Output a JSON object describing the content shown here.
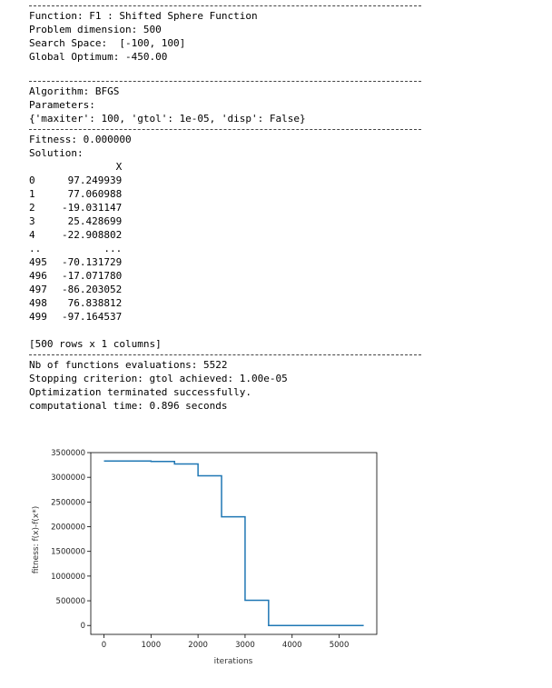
{
  "problem": {
    "function_line": "Function: F1 : Shifted Sphere Function",
    "dimension_line": "Problem dimension: 500",
    "search_space_line": "Search Space:  [-100, 100]",
    "optimum_line": "Global Optimum: -450.00"
  },
  "algorithm": {
    "algorithm_line": "Algorithm: BFGS",
    "parameters_label": "Parameters:",
    "parameters_value": "{'maxiter': 100, 'gtol': 1e-05, 'disp': False}"
  },
  "result": {
    "fitness_line": "Fitness: 0.000000",
    "solution_label": "Solution:",
    "column_header": "X",
    "rows": [
      {
        "index": "0",
        "value": "97.249939"
      },
      {
        "index": "1",
        "value": "77.060988"
      },
      {
        "index": "2",
        "value": "-19.031147"
      },
      {
        "index": "3",
        "value": "25.428699"
      },
      {
        "index": "4",
        "value": "-22.908802"
      },
      {
        "index": "..",
        "value": "..."
      },
      {
        "index": "495",
        "value": "-70.131729"
      },
      {
        "index": "496",
        "value": "-17.071780"
      },
      {
        "index": "497",
        "value": "-86.203052"
      },
      {
        "index": "498",
        "value": "76.838812"
      },
      {
        "index": "499",
        "value": "-97.164537"
      }
    ],
    "shape_line": "[500 rows x 1 columns]"
  },
  "summary": {
    "evaluations_line": "Nb of functions evaluations: 5522",
    "stopping_line": "Stopping criterion: gtol achieved: 1.00e-05",
    "status_line": "Optimization terminated successfully.",
    "time_line": "computational time: 0.896 seconds"
  },
  "chart_data": {
    "type": "line",
    "title": "",
    "xlabel": "iterations",
    "ylabel": "fitness: f(x)-f(x*)",
    "xlim": [
      -280,
      5800
    ],
    "ylim": [
      -180000,
      3500000
    ],
    "xticks": [
      0,
      1000,
      2000,
      3000,
      4000,
      5000
    ],
    "yticks": [
      0,
      500000,
      1000000,
      1500000,
      2000000,
      2500000,
      3000000,
      3500000
    ],
    "grid": false,
    "line_color": "#1f77b4",
    "step": true,
    "series": [
      {
        "x": [
          0,
          500,
          1000,
          1500,
          2000,
          2500,
          3000,
          3500,
          4000,
          4500,
          5000,
          5522
        ],
        "y": [
          3330000,
          3330000,
          3320000,
          3270000,
          3030000,
          2200000,
          510000,
          0,
          0,
          0,
          0,
          0
        ]
      }
    ]
  }
}
